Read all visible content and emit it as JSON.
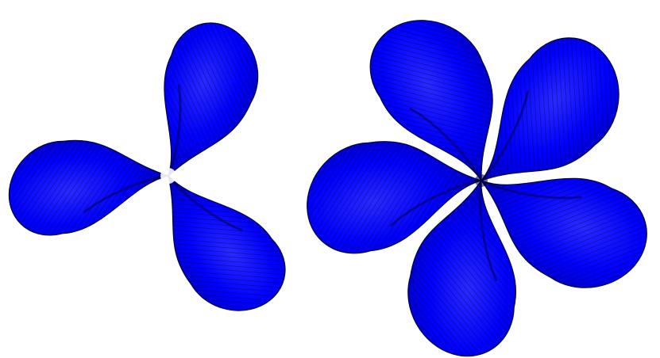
{
  "figures": [
    {
      "name": "three-petal-surface",
      "petal_count": 3,
      "color": "#0000ff",
      "stripe_color": "#000033",
      "shade_color": "#00003a",
      "highlight_color": "#2a2aff"
    },
    {
      "name": "five-petal-surface",
      "petal_count": 5,
      "color": "#0000ff",
      "stripe_color": "#000033",
      "shade_color": "#00003a",
      "highlight_color": "#2a2aff"
    }
  ],
  "background_color": "#ffffff"
}
